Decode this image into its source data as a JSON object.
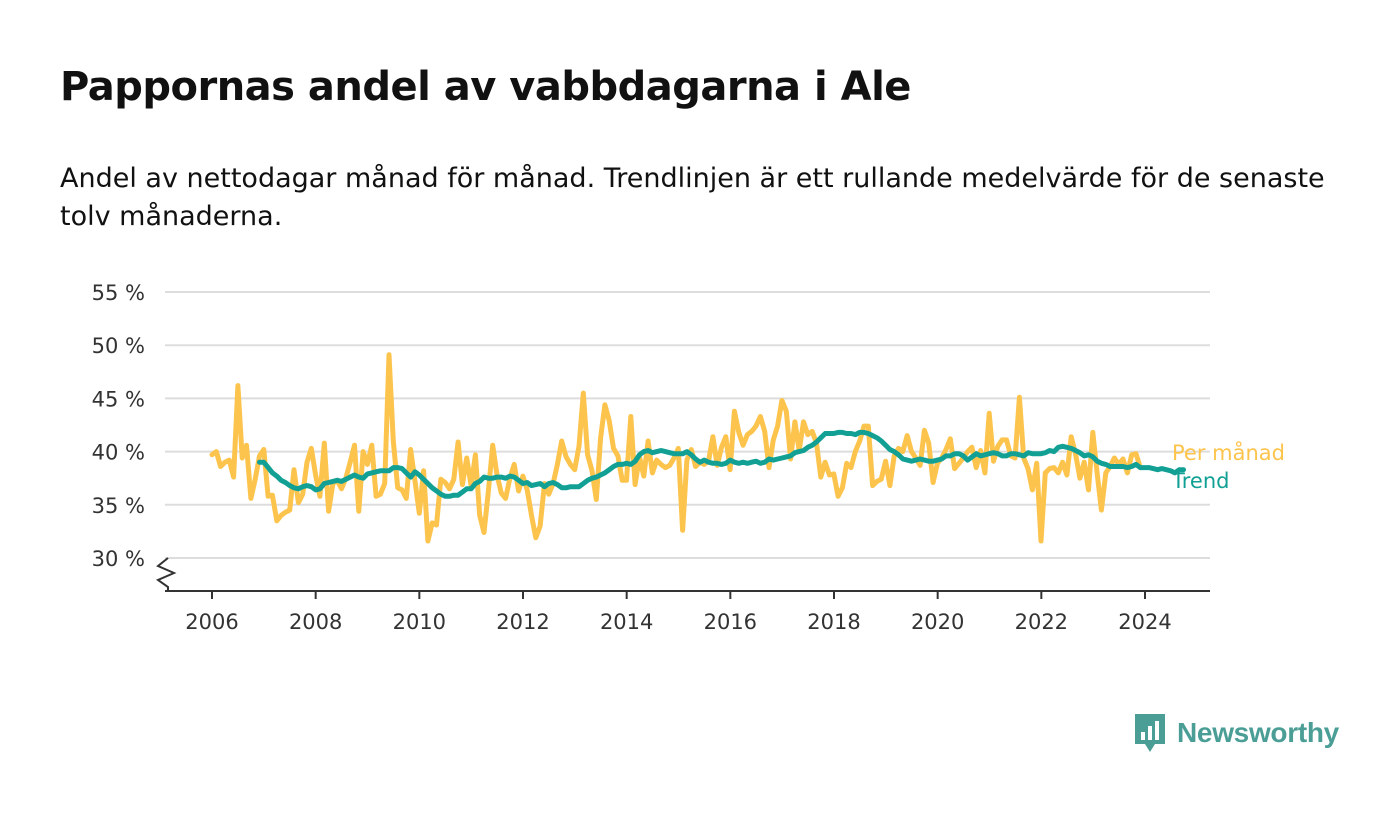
{
  "title": "Pappornas andel av vabbdagarna i Ale",
  "subtitle": "Andel av nettodagar månad för månad. Trendlinjen är ett rullande medelvärde för de senaste tolv månaderna.",
  "brand": {
    "name": "Newsworthy",
    "icon": "newsworthy-logo-icon",
    "color": "#4a9e96"
  },
  "chart_data": {
    "type": "line",
    "title": "Pappornas andel av vabbdagarna i Ale",
    "xlabel": "",
    "ylabel": "",
    "xlim": [
      2006,
      2024.4
    ],
    "ylim": [
      30,
      55
    ],
    "x_ticks": [
      "2006",
      "2008",
      "2010",
      "2012",
      "2014",
      "2016",
      "2018",
      "2020",
      "2022",
      "2024"
    ],
    "y_ticks": [
      "30 %",
      "35 %",
      "40 %",
      "45 %",
      "50 %",
      "55 %"
    ],
    "grid": true,
    "legend": "inline-right",
    "series": [
      {
        "name": "Per månad",
        "color": "#fcc44d",
        "x_start": 2006.0,
        "x_step": 0.0833,
        "values": [
          39.7,
          40.0,
          38.6,
          39.0,
          39.2,
          37.6,
          46.2,
          39.4,
          40.6,
          35.6,
          37.4,
          39.6,
          40.2,
          35.8,
          35.9,
          33.5,
          34.0,
          34.3,
          34.5,
          38.3,
          35.2,
          36.0,
          39.0,
          40.3,
          37.8,
          35.8,
          40.8,
          34.4,
          37.0,
          37.3,
          36.5,
          37.5,
          39.0,
          40.6,
          34.4,
          40.0,
          38.8,
          40.6,
          35.8,
          36.0,
          37.0,
          49.1,
          41.0,
          36.6,
          36.4,
          35.6,
          40.2,
          37.3,
          34.2,
          38.2,
          31.6,
          33.3,
          33.1,
          37.4,
          37.1,
          36.5,
          37.4,
          40.9,
          36.9,
          39.4,
          36.8,
          39.7,
          34.0,
          32.4,
          36.2,
          40.6,
          37.8,
          36.1,
          35.6,
          37.5,
          38.8,
          36.3,
          37.7,
          36.4,
          34.0,
          31.9,
          33.0,
          37.0,
          36.0,
          37.0,
          38.8,
          41.0,
          39.5,
          38.8,
          38.3,
          40.5,
          45.5,
          39.7,
          38.2,
          35.5,
          41.3,
          44.4,
          42.9,
          40.3,
          39.6,
          37.3,
          37.3,
          43.3,
          36.9,
          39.5,
          37.7,
          41.0,
          38.0,
          39.2,
          38.8,
          38.5,
          38.7,
          39.4,
          40.3,
          32.6,
          39.2,
          40.2,
          38.6,
          39.0,
          38.8,
          39.1,
          41.4,
          38.7,
          40.4,
          41.4,
          38.3,
          43.8,
          41.8,
          40.6,
          41.6,
          41.9,
          42.4,
          43.3,
          41.9,
          38.5,
          41.1,
          42.4,
          44.8,
          43.8,
          39.3,
          42.8,
          40.1,
          42.8,
          41.6,
          41.9,
          40.8,
          37.6,
          39.0,
          37.8,
          37.9,
          35.8,
          36.6,
          38.9,
          38.5,
          40.0,
          41.0,
          42.4,
          42.4,
          36.8,
          37.2,
          37.4,
          39.1,
          36.8,
          39.6,
          40.3,
          40.0,
          41.5,
          40.0,
          39.4,
          38.7,
          42.0,
          40.8,
          37.1,
          38.9,
          39.4,
          40.2,
          41.2,
          38.4,
          38.9,
          39.4,
          40.0,
          40.4,
          38.5,
          40.1,
          38.0,
          43.6,
          39.1,
          40.5,
          41.1,
          41.1,
          39.6,
          39.4,
          45.1,
          39.4,
          38.4,
          36.4,
          38.9,
          31.6,
          38.0,
          38.4,
          38.5,
          38.0,
          39.0,
          37.8,
          41.4,
          39.8,
          37.5,
          39.0,
          36.4,
          41.8,
          38.0,
          34.5,
          38.0,
          38.6,
          39.4,
          38.8,
          39.3,
          38.0,
          39.7,
          39.8,
          38.5
        ]
      },
      {
        "name": "Trend",
        "color": "#12a095",
        "x_start": 2006.917,
        "x_step": 0.0833,
        "values": [
          39.0,
          39.0,
          38.5,
          38.0,
          37.7,
          37.3,
          37.1,
          36.8,
          36.6,
          36.5,
          36.7,
          36.8,
          36.7,
          36.4,
          36.5,
          37.0,
          37.1,
          37.2,
          37.3,
          37.2,
          37.4,
          37.6,
          37.8,
          37.6,
          37.5,
          37.9,
          38.0,
          38.1,
          38.2,
          38.2,
          38.2,
          38.5,
          38.5,
          38.4,
          38.0,
          37.6,
          38.1,
          37.8,
          37.4,
          37.0,
          36.6,
          36.3,
          36.0,
          35.8,
          35.8,
          35.9,
          35.9,
          36.2,
          36.5,
          36.5,
          37.0,
          37.2,
          37.6,
          37.5,
          37.5,
          37.6,
          37.6,
          37.5,
          37.7,
          37.6,
          37.3,
          37.0,
          37.1,
          36.8,
          36.9,
          37.0,
          36.7,
          37.0,
          37.1,
          36.9,
          36.6,
          36.6,
          36.7,
          36.7,
          36.7,
          37.0,
          37.3,
          37.5,
          37.6,
          37.8,
          38.0,
          38.3,
          38.6,
          38.8,
          38.8,
          38.9,
          38.8,
          39.1,
          39.7,
          40.0,
          40.1,
          39.9,
          40.0,
          40.1,
          40.0,
          39.9,
          39.8,
          39.8,
          39.8,
          40.0,
          39.7,
          39.3,
          39.0,
          39.2,
          39.0,
          38.9,
          38.9,
          38.8,
          38.9,
          39.2,
          39.0,
          38.9,
          39.0,
          38.9,
          39.0,
          39.1,
          38.9,
          39.0,
          39.3,
          39.2,
          39.3,
          39.4,
          39.5,
          39.6,
          39.9,
          40.0,
          40.1,
          40.4,
          40.6,
          40.9,
          41.3,
          41.7,
          41.7,
          41.7,
          41.8,
          41.8,
          41.7,
          41.7,
          41.6,
          41.8,
          41.8,
          41.7,
          41.5,
          41.3,
          41.0,
          40.6,
          40.2,
          40.0,
          39.7,
          39.3,
          39.2,
          39.1,
          39.2,
          39.3,
          39.2,
          39.1,
          39.1,
          39.2,
          39.3,
          39.6,
          39.6,
          39.8,
          39.8,
          39.6,
          39.2,
          39.5,
          39.8,
          39.6,
          39.7,
          39.8,
          39.9,
          39.8,
          39.6,
          39.6,
          39.8,
          39.8,
          39.7,
          39.6,
          39.9,
          39.8,
          39.8,
          39.8,
          39.9,
          40.1,
          40.0,
          40.4,
          40.5,
          40.4,
          40.3,
          40.1,
          39.9,
          39.6,
          39.7,
          39.5,
          39.1,
          38.9,
          38.8,
          38.6,
          38.6,
          38.6,
          38.6,
          38.5,
          38.6,
          38.8,
          38.5,
          38.5,
          38.5,
          38.4,
          38.3,
          38.4,
          38.3,
          38.2,
          38.0,
          38.3,
          38.3
        ]
      }
    ]
  }
}
